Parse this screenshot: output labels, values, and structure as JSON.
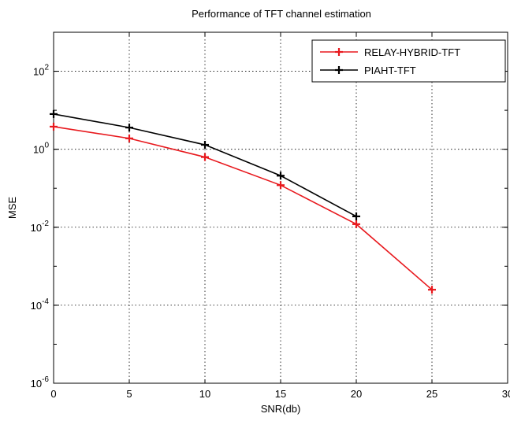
{
  "chart_data": {
    "type": "line",
    "title": "Performance of TFT channel estimation",
    "xlabel": "SNR(db)",
    "ylabel": "MSE",
    "xlim": [
      0,
      30
    ],
    "ylim_log10": [
      -6,
      3
    ],
    "y_scale": "log",
    "x_ticks": [
      "0",
      "5",
      "10",
      "15",
      "20",
      "25",
      "30"
    ],
    "y_ticks": [
      {
        "base": "10",
        "exp": "-6",
        "log": -6
      },
      {
        "base": "10",
        "exp": "-4",
        "log": -4
      },
      {
        "base": "10",
        "exp": "-2",
        "log": -2
      },
      {
        "base": "10",
        "exp": "0",
        "log": 0
      },
      {
        "base": "10",
        "exp": "2",
        "log": 2
      }
    ],
    "grid": true,
    "legend_position": "top-right",
    "series": [
      {
        "name": "RELAY-HYBRID-TFT",
        "color": "#e8191e",
        "marker": "plus",
        "x": [
          0,
          5,
          10,
          15,
          20,
          25
        ],
        "y": [
          3.8,
          1.9,
          0.63,
          0.12,
          0.012,
          0.00025
        ]
      },
      {
        "name": "PIAHT-TFT",
        "color": "#000000",
        "marker": "plus",
        "x": [
          0,
          5,
          10,
          15,
          20
        ],
        "y": [
          8.0,
          3.6,
          1.3,
          0.21,
          0.019
        ]
      }
    ]
  }
}
